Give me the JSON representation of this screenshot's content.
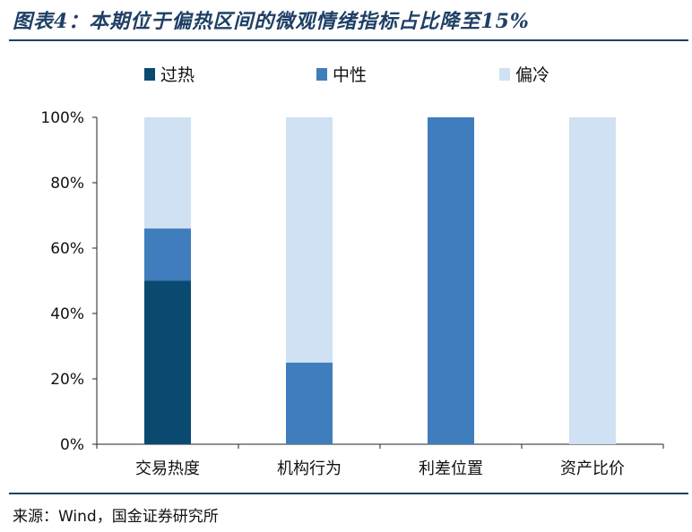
{
  "header": {
    "title": "图表4：本期位于偏热区间的微观情绪指标占比降至15%"
  },
  "footer": {
    "source": "来源：Wind，国金证券研究所"
  },
  "colors": {
    "过热": "#0b4a70",
    "中性": "#3f7dbd",
    "偏冷": "#cfe1f2"
  },
  "chart_data": {
    "type": "bar",
    "stacked": true,
    "categories": [
      "交易热度",
      "机构行为",
      "利差位置",
      "资产比价"
    ],
    "series": [
      {
        "name": "过热",
        "values": [
          50,
          0,
          0,
          0
        ]
      },
      {
        "name": "中性",
        "values": [
          16,
          25,
          100,
          0
        ]
      },
      {
        "name": "偏冷",
        "values": [
          34,
          75,
          0,
          100
        ]
      }
    ],
    "ylim": [
      0,
      100
    ],
    "yticks": [
      "0%",
      "20%",
      "40%",
      "60%",
      "80%",
      "100%"
    ],
    "xlabel": "",
    "ylabel": "",
    "legend": "top",
    "grid": false
  }
}
